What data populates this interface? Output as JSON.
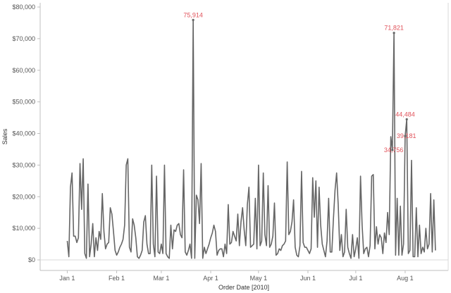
{
  "chart_data": {
    "type": "line",
    "xlabel": "Order Date [2010]",
    "ylabel": "Sales",
    "ylim": [
      0,
      80000
    ],
    "y_ticks": [
      0,
      10000,
      20000,
      30000,
      40000,
      50000,
      60000,
      70000,
      80000
    ],
    "y_tick_labels": [
      "$0",
      "$10,000",
      "$20,000",
      "$30,000",
      "$40,000",
      "$50,000",
      "$60,000",
      "$70,000",
      "$80,000"
    ],
    "x_range": [
      "2009-12-15",
      "2010-08-28"
    ],
    "x_ticks": [
      "2010-01-01",
      "2010-02-01",
      "2010-03-01",
      "2010-04-01",
      "2010-05-01",
      "2010-06-01",
      "2010-07-01",
      "2010-08-01"
    ],
    "x_tick_labels": [
      "Jan 1",
      "Feb 1",
      "Mar 1",
      "Apr 1",
      "May 1",
      "Jun 1",
      "Jul 1",
      "Aug 1"
    ],
    "grid": false,
    "line_color": "#666666",
    "annotation_color": "#e0525a",
    "series": [
      {
        "points": [
          [
            "2010-01-01",
            6000
          ],
          [
            "2010-01-02",
            1000
          ],
          [
            "2010-01-03",
            23000
          ],
          [
            "2010-01-04",
            27500
          ],
          [
            "2010-01-05",
            7500
          ],
          [
            "2010-01-06",
            7500
          ],
          [
            "2010-01-07",
            5500
          ],
          [
            "2010-01-08",
            7000
          ],
          [
            "2010-01-09",
            30500
          ],
          [
            "2010-01-10",
            16000
          ],
          [
            "2010-01-11",
            32000
          ],
          [
            "2010-01-12",
            2000
          ],
          [
            "2010-01-13",
            500
          ],
          [
            "2010-01-14",
            24000
          ],
          [
            "2010-01-15",
            1000
          ],
          [
            "2010-01-16",
            5000
          ],
          [
            "2010-01-17",
            11500
          ],
          [
            "2010-01-18",
            1000
          ],
          [
            "2010-01-19",
            7000
          ],
          [
            "2010-01-20",
            3000
          ],
          [
            "2010-01-21",
            9000
          ],
          [
            "2010-01-22",
            6500
          ],
          [
            "2010-01-23",
            21000
          ],
          [
            "2010-01-24",
            9000
          ],
          [
            "2010-01-25",
            3500
          ],
          [
            "2010-01-26",
            5000
          ],
          [
            "2010-01-27",
            5500
          ],
          [
            "2010-01-28",
            16500
          ],
          [
            "2010-01-29",
            14500
          ],
          [
            "2010-01-30",
            9000
          ],
          [
            "2010-01-31",
            3000
          ],
          [
            "2010-02-01",
            1500
          ],
          [
            "2010-02-02",
            2500
          ],
          [
            "2010-02-03",
            4000
          ],
          [
            "2010-02-04",
            5000
          ],
          [
            "2010-02-05",
            6500
          ],
          [
            "2010-02-06",
            11000
          ],
          [
            "2010-02-07",
            30000
          ],
          [
            "2010-02-08",
            32000
          ],
          [
            "2010-02-09",
            4000
          ],
          [
            "2010-02-10",
            2500
          ],
          [
            "2010-02-11",
            13000
          ],
          [
            "2010-02-12",
            11000
          ],
          [
            "2010-02-13",
            7000
          ],
          [
            "2010-02-14",
            1000
          ],
          [
            "2010-02-15",
            500
          ],
          [
            "2010-02-16",
            1500
          ],
          [
            "2010-02-17",
            3000
          ],
          [
            "2010-02-18",
            12000
          ],
          [
            "2010-02-19",
            14000
          ],
          [
            "2010-02-20",
            5000
          ],
          [
            "2010-02-21",
            2000
          ],
          [
            "2010-02-22",
            2000
          ],
          [
            "2010-02-23",
            30000
          ],
          [
            "2010-02-24",
            5000
          ],
          [
            "2010-02-25",
            1000
          ],
          [
            "2010-02-26",
            26500
          ],
          [
            "2010-02-27",
            2500
          ],
          [
            "2010-02-28",
            2000
          ],
          [
            "2010-03-01",
            5000
          ],
          [
            "2010-03-02",
            2000
          ],
          [
            "2010-03-03",
            30000
          ],
          [
            "2010-03-04",
            2000
          ],
          [
            "2010-03-05",
            1000
          ],
          [
            "2010-03-06",
            500
          ],
          [
            "2010-03-07",
            11000
          ],
          [
            "2010-03-08",
            3500
          ],
          [
            "2010-03-09",
            9500
          ],
          [
            "2010-03-10",
            9000
          ],
          [
            "2010-03-11",
            11000
          ],
          [
            "2010-03-12",
            11500
          ],
          [
            "2010-03-13",
            8000
          ],
          [
            "2010-03-14",
            7000
          ],
          [
            "2010-03-15",
            28500
          ],
          [
            "2010-03-16",
            2500
          ],
          [
            "2010-03-17",
            1500
          ],
          [
            "2010-03-18",
            3000
          ],
          [
            "2010-03-19",
            5000
          ],
          [
            "2010-03-20",
            500
          ],
          [
            "2010-03-21",
            75914
          ],
          [
            "2010-03-22",
            500
          ],
          [
            "2010-03-23",
            20500
          ],
          [
            "2010-03-24",
            19000
          ],
          [
            "2010-03-25",
            11500
          ],
          [
            "2010-03-26",
            30500
          ],
          [
            "2010-03-27",
            500
          ],
          [
            "2010-03-28",
            4000
          ],
          [
            "2010-03-29",
            2000
          ],
          [
            "2010-03-30",
            3500
          ],
          [
            "2010-03-31",
            5000
          ],
          [
            "2010-04-01",
            7000
          ],
          [
            "2010-04-02",
            8500
          ],
          [
            "2010-04-03",
            11000
          ],
          [
            "2010-04-04",
            9000
          ],
          [
            "2010-04-05",
            1500
          ],
          [
            "2010-04-06",
            3000
          ],
          [
            "2010-04-07",
            3500
          ],
          [
            "2010-04-08",
            3500
          ],
          [
            "2010-04-09",
            1000
          ],
          [
            "2010-04-10",
            5000
          ],
          [
            "2010-04-11",
            2000
          ],
          [
            "2010-04-12",
            17500
          ],
          [
            "2010-04-13",
            5000
          ],
          [
            "2010-04-14",
            5500
          ],
          [
            "2010-04-15",
            9000
          ],
          [
            "2010-04-16",
            7500
          ],
          [
            "2010-04-17",
            6000
          ],
          [
            "2010-04-18",
            14500
          ],
          [
            "2010-04-19",
            4500
          ],
          [
            "2010-04-20",
            12000
          ],
          [
            "2010-04-21",
            16500
          ],
          [
            "2010-04-22",
            9500
          ],
          [
            "2010-04-23",
            4500
          ],
          [
            "2010-04-24",
            17500
          ],
          [
            "2010-04-25",
            23000
          ],
          [
            "2010-04-26",
            4000
          ],
          [
            "2010-04-27",
            4500
          ],
          [
            "2010-04-28",
            5000
          ],
          [
            "2010-04-29",
            19500
          ],
          [
            "2010-04-30",
            3500
          ],
          [
            "2010-05-01",
            30000
          ],
          [
            "2010-05-02",
            4500
          ],
          [
            "2010-05-03",
            6000
          ],
          [
            "2010-05-04",
            27500
          ],
          [
            "2010-05-05",
            8000
          ],
          [
            "2010-05-06",
            4500
          ],
          [
            "2010-05-07",
            23500
          ],
          [
            "2010-05-08",
            4000
          ],
          [
            "2010-05-09",
            5000
          ],
          [
            "2010-05-10",
            7500
          ],
          [
            "2010-05-11",
            18000
          ],
          [
            "2010-05-12",
            1500
          ],
          [
            "2010-05-13",
            2000
          ],
          [
            "2010-05-14",
            3500
          ],
          [
            "2010-05-15",
            3000
          ],
          [
            "2010-05-16",
            4500
          ],
          [
            "2010-05-17",
            5000
          ],
          [
            "2010-05-18",
            6000
          ],
          [
            "2010-05-19",
            31000
          ],
          [
            "2010-05-20",
            8000
          ],
          [
            "2010-05-21",
            9000
          ],
          [
            "2010-05-22",
            12000
          ],
          [
            "2010-05-23",
            19000
          ],
          [
            "2010-05-24",
            4000
          ],
          [
            "2010-05-25",
            1500
          ],
          [
            "2010-05-26",
            1000
          ],
          [
            "2010-05-27",
            4500
          ],
          [
            "2010-05-28",
            28000
          ],
          [
            "2010-05-29",
            5500
          ],
          [
            "2010-05-30",
            4000
          ],
          [
            "2010-05-31",
            4000
          ],
          [
            "2010-06-01",
            3000
          ],
          [
            "2010-06-02",
            2000
          ],
          [
            "2010-06-03",
            3500
          ],
          [
            "2010-06-04",
            26000
          ],
          [
            "2010-06-05",
            13500
          ],
          [
            "2010-06-06",
            25000
          ],
          [
            "2010-06-07",
            4000
          ],
          [
            "2010-06-08",
            23000
          ],
          [
            "2010-06-09",
            11000
          ],
          [
            "2010-06-10",
            5000
          ],
          [
            "2010-06-11",
            3000
          ],
          [
            "2010-06-12",
            1000
          ],
          [
            "2010-06-13",
            6000
          ],
          [
            "2010-06-14",
            19500
          ],
          [
            "2010-06-15",
            2500
          ],
          [
            "2010-06-16",
            2500
          ],
          [
            "2010-06-17",
            13000
          ],
          [
            "2010-06-18",
            22000
          ],
          [
            "2010-06-19",
            27500
          ],
          [
            "2010-06-20",
            17500
          ],
          [
            "2010-06-21",
            3000
          ],
          [
            "2010-06-22",
            8000
          ],
          [
            "2010-06-23",
            1000
          ],
          [
            "2010-06-24",
            2500
          ],
          [
            "2010-06-25",
            16000
          ],
          [
            "2010-06-26",
            4000
          ],
          [
            "2010-06-27",
            2000
          ],
          [
            "2010-06-28",
            500
          ],
          [
            "2010-06-29",
            8000
          ],
          [
            "2010-06-30",
            1000
          ],
          [
            "2010-07-01",
            3500
          ],
          [
            "2010-07-02",
            7000
          ],
          [
            "2010-07-03",
            500
          ],
          [
            "2010-07-04",
            26500
          ],
          [
            "2010-07-05",
            11000
          ],
          [
            "2010-07-06",
            2000
          ],
          [
            "2010-07-07",
            3500
          ],
          [
            "2010-07-08",
            4000
          ],
          [
            "2010-07-09",
            1000
          ],
          [
            "2010-07-10",
            4500
          ],
          [
            "2010-07-11",
            26500
          ],
          [
            "2010-07-12",
            27000
          ],
          [
            "2010-07-13",
            3500
          ],
          [
            "2010-07-14",
            10500
          ],
          [
            "2010-07-15",
            5000
          ],
          [
            "2010-07-16",
            8000
          ],
          [
            "2010-07-17",
            7000
          ],
          [
            "2010-07-18",
            2000
          ],
          [
            "2010-07-19",
            8500
          ],
          [
            "2010-07-20",
            5500
          ],
          [
            "2010-07-21",
            15000
          ],
          [
            "2010-07-22",
            8000
          ],
          [
            "2010-07-23",
            39000
          ],
          [
            "2010-07-24",
            34756
          ],
          [
            "2010-07-25",
            71821
          ],
          [
            "2010-07-26",
            1500
          ],
          [
            "2010-07-27",
            19500
          ],
          [
            "2010-07-28",
            1500
          ],
          [
            "2010-07-29",
            17000
          ],
          [
            "2010-07-30",
            1500
          ],
          [
            "2010-07-31",
            5000
          ],
          [
            "2010-08-01",
            39181
          ],
          [
            "2010-08-02",
            44484
          ],
          [
            "2010-08-03",
            2000
          ],
          [
            "2010-08-04",
            3000
          ],
          [
            "2010-08-05",
            31500
          ],
          [
            "2010-08-06",
            1000
          ],
          [
            "2010-08-07",
            1000
          ],
          [
            "2010-08-08",
            16500
          ],
          [
            "2010-08-09",
            1000
          ],
          [
            "2010-08-10",
            11000
          ],
          [
            "2010-08-11",
            2000
          ],
          [
            "2010-08-12",
            4000
          ],
          [
            "2010-08-13",
            2500
          ],
          [
            "2010-08-14",
            10000
          ],
          [
            "2010-08-15",
            3500
          ],
          [
            "2010-08-16",
            5000
          ],
          [
            "2010-08-17",
            21000
          ],
          [
            "2010-08-18",
            2500
          ],
          [
            "2010-08-19",
            19000
          ],
          [
            "2010-08-20",
            3000
          ]
        ]
      }
    ],
    "annotations": [
      {
        "x": "2010-03-21",
        "y": 75914,
        "label": "75,914",
        "anchor": "above"
      },
      {
        "x": "2010-07-25",
        "y": 71821,
        "label": "71,821",
        "anchor": "above"
      },
      {
        "x": "2010-08-02",
        "y": 44484,
        "label": "44,484",
        "anchor": "above-right"
      },
      {
        "x": "2010-08-01",
        "y": 39181,
        "label": "39,181",
        "anchor": "right"
      },
      {
        "x": "2010-07-24",
        "y": 34756,
        "label": "34,756",
        "anchor": "right"
      }
    ]
  }
}
